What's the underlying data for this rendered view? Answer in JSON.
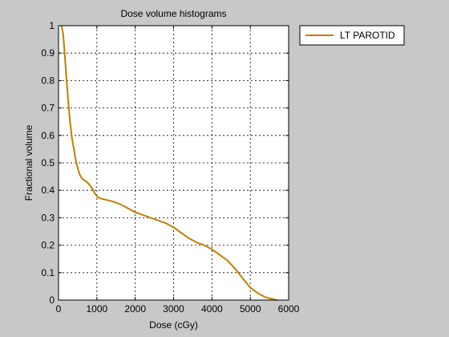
{
  "figure": {
    "background": "#c8c8c8",
    "axes_background": "#ffffff"
  },
  "chart_data": {
    "type": "line",
    "title": "Dose volume histograms",
    "xlabel": "Dose (cGy)",
    "ylabel": "Fractional volume",
    "xlim": [
      0,
      6000
    ],
    "ylim": [
      0,
      1
    ],
    "xticks": [
      0,
      1000,
      2000,
      3000,
      4000,
      5000,
      6000
    ],
    "yticks": [
      0,
      0.1,
      0.2,
      0.3,
      0.4,
      0.5,
      0.6,
      0.7,
      0.8,
      0.9,
      1
    ],
    "xtick_labels": [
      "0",
      "1000",
      "2000",
      "3000",
      "4000",
      "5000",
      "6000"
    ],
    "ytick_labels": [
      "0",
      "0.1",
      "0.2",
      "0.3",
      "0.4",
      "0.5",
      "0.6",
      "0.7",
      "0.8",
      "0.9",
      "1"
    ],
    "grid": true,
    "grid_style": "dotted",
    "legend_position": "outside-top-right",
    "series": [
      {
        "name": "LT PAROTID",
        "color": "#bf8000",
        "x": [
          80,
          120,
          160,
          200,
          250,
          300,
          350,
          400,
          450,
          500,
          560,
          630,
          700,
          780,
          860,
          940,
          1020,
          1100,
          1250,
          1400,
          1600,
          1800,
          2000,
          2200,
          2400,
          2600,
          2800,
          3000,
          3200,
          3400,
          3600,
          3800,
          4000,
          4200,
          4400,
          4600,
          4800,
          5000,
          5200,
          5400,
          5600,
          5700
        ],
        "y": [
          1.0,
          0.97,
          0.9,
          0.82,
          0.73,
          0.65,
          0.59,
          0.55,
          0.51,
          0.48,
          0.455,
          0.44,
          0.435,
          0.425,
          0.41,
          0.39,
          0.375,
          0.37,
          0.365,
          0.36,
          0.35,
          0.335,
          0.32,
          0.31,
          0.3,
          0.29,
          0.28,
          0.265,
          0.245,
          0.225,
          0.21,
          0.2,
          0.185,
          0.165,
          0.145,
          0.115,
          0.08,
          0.045,
          0.025,
          0.01,
          0.003,
          0.0
        ]
      }
    ]
  }
}
